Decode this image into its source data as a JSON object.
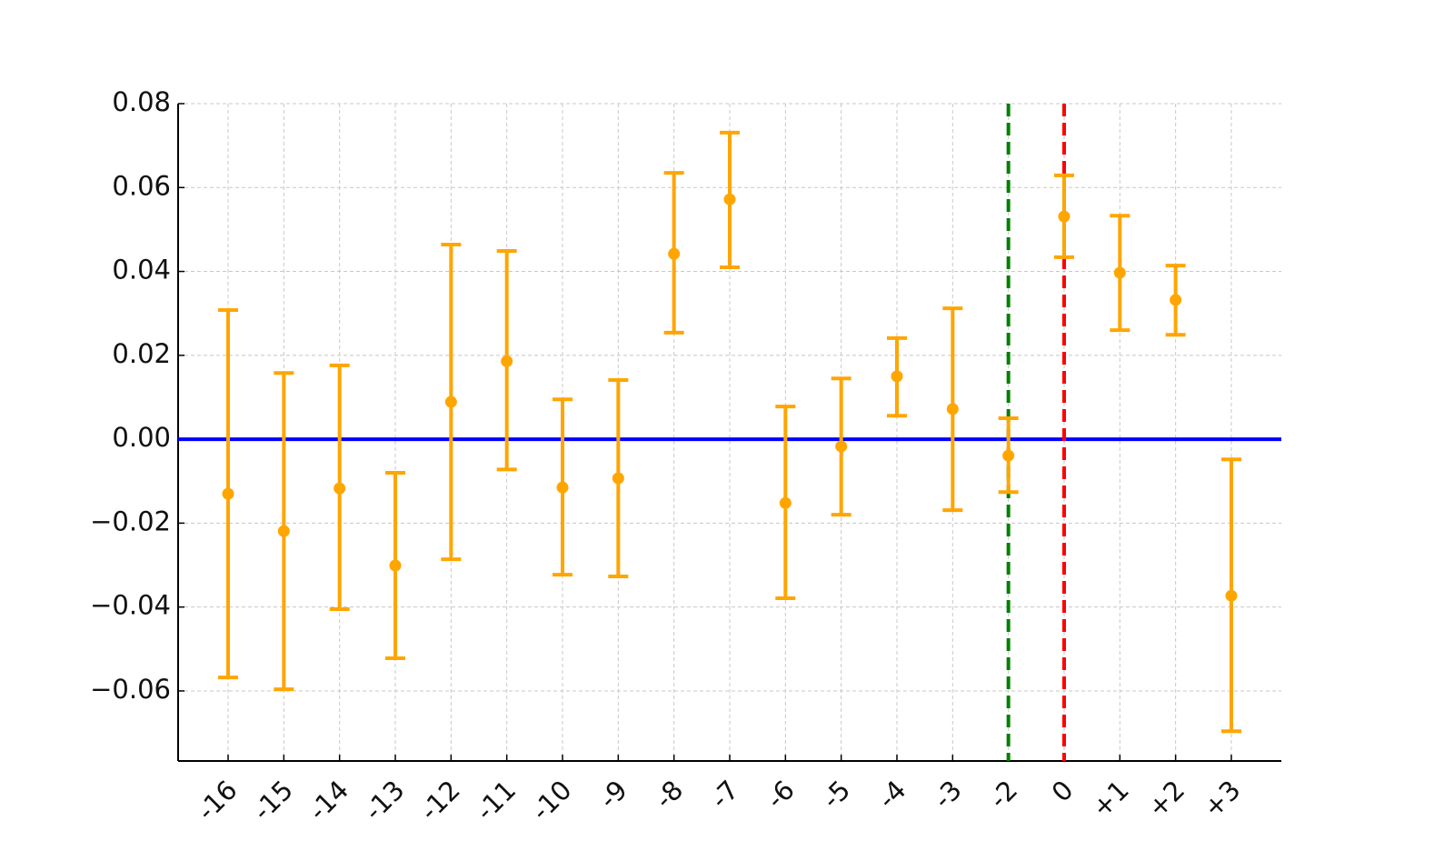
{
  "chart_data": {
    "type": "errorbar",
    "categories": [
      "-16",
      "-15",
      "-14",
      "-13",
      "-12",
      "-11",
      "-10",
      "-9",
      "-8",
      "-7",
      "-6",
      "-5",
      "-4",
      "-3",
      "-2",
      "0",
      "+1",
      "+2",
      "+3"
    ],
    "series": [
      {
        "color": "#ffa500",
        "values": [
          -0.013,
          -0.0219,
          -0.0117,
          -0.0301,
          0.0089,
          0.0186,
          -0.0115,
          -0.0093,
          0.0442,
          0.0572,
          -0.0152,
          -0.0017,
          0.015,
          0.0072,
          -0.0039,
          0.0531,
          0.0397,
          0.0332,
          -0.0373
        ],
        "lower": [
          -0.0568,
          -0.0596,
          -0.0405,
          -0.0522,
          -0.0286,
          -0.0072,
          -0.0323,
          -0.0327,
          0.0254,
          0.041,
          -0.0379,
          -0.018,
          0.0056,
          -0.0169,
          -0.0126,
          0.0434,
          0.026,
          0.0249,
          -0.0696
        ],
        "upper": [
          0.0308,
          0.0158,
          0.0176,
          -0.008,
          0.0464,
          0.0449,
          0.0095,
          0.0141,
          0.0635,
          0.0731,
          0.0078,
          0.0145,
          0.0241,
          0.0312,
          0.005,
          0.0629,
          0.0533,
          0.0414,
          -0.0048
        ]
      }
    ],
    "ylim": [
      -0.0767,
      0.08
    ],
    "yticks": [
      {
        "value": -0.06,
        "label": "−0.06"
      },
      {
        "value": -0.04,
        "label": "−0.04"
      },
      {
        "value": -0.02,
        "label": "−0.02"
      },
      {
        "value": 0,
        "label": "0.00"
      },
      0.02,
      0.04,
      0.06,
      0.08
    ],
    "hline": {
      "value": 0,
      "color": "#0000ff"
    },
    "vlines": [
      {
        "at": "-2",
        "color": "#008000"
      },
      {
        "at": "0",
        "color": "#ff0000"
      }
    ],
    "grid": true
  }
}
